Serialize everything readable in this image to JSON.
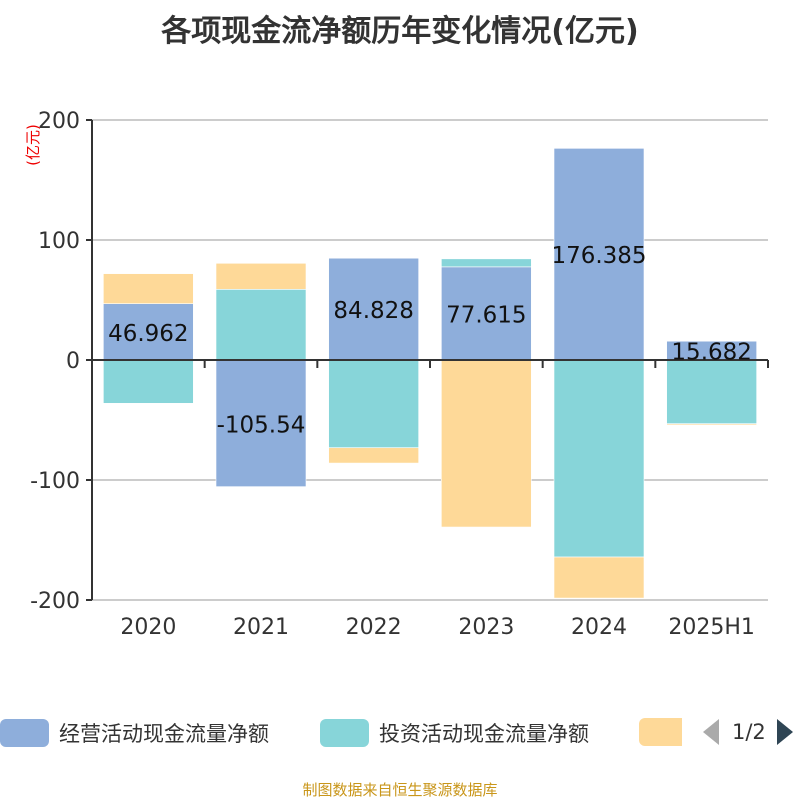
{
  "title": "各项现金流净额历年变化情况(亿元)",
  "footer": "制图数据来自恒生聚源数据库",
  "legend_page": "1/2",
  "chart_data": {
    "type": "bar",
    "stacked": true,
    "categories": [
      "2020",
      "2021",
      "2022",
      "2023",
      "2024",
      "2025H1"
    ],
    "ylabel": "(亿元)",
    "ylim": [
      -200,
      200
    ],
    "yticks": [
      -200,
      -100,
      0,
      100,
      200
    ],
    "grid": true,
    "legend_placement": "bottom",
    "series": [
      {
        "name": "经营活动现金流量净额",
        "color": "#8eaedb",
        "values": [
          46.962,
          -105.54,
          84.828,
          77.615,
          176.385,
          15.682
        ],
        "labels": [
          "46.962",
          "-105.54",
          "84.828",
          "77.615",
          "176.385",
          "15.682"
        ]
      },
      {
        "name": "投资活动现金流量净额",
        "color": "#87d5d9",
        "values": [
          -36.1,
          58.9,
          -73.1,
          6.7,
          -164.2,
          -53.1
        ]
      },
      {
        "color": "#fed998",
        "values": [
          25.0,
          21.7,
          -12.8,
          -139.2,
          -34.2,
          -1.0
        ]
      }
    ]
  }
}
